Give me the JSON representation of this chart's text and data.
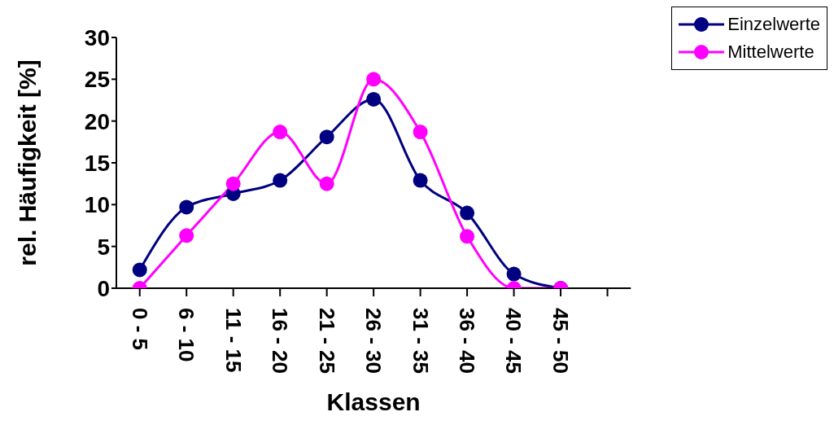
{
  "chart_data": {
    "type": "line",
    "xlabel": "Klassen",
    "ylabel": "rel. Häufigkeit [%]",
    "categories": [
      "0 - 5",
      "6 - 10",
      "11 - 15",
      "16 - 20",
      "21 - 25",
      "26 - 30",
      "31 - 35",
      "36 - 40",
      "40 - 45",
      "45 - 50",
      null
    ],
    "series": [
      {
        "name": "Einzelwerte",
        "color": "#000080",
        "values": [
          2.2,
          9.7,
          11.3,
          12.9,
          18.1,
          22.6,
          12.9,
          9.0,
          1.7,
          0,
          null
        ]
      },
      {
        "name": "Mittelwerte",
        "color": "#ff00ff",
        "values": [
          0,
          6.3,
          12.5,
          18.7,
          12.5,
          25.0,
          18.7,
          6.2,
          0,
          0,
          null
        ]
      }
    ],
    "ylim": [
      0,
      30
    ],
    "yticks": [
      0,
      5,
      10,
      15,
      20,
      25,
      30
    ],
    "grid": false,
    "legend": "top right",
    "marker": "circle",
    "line_style": "solid"
  }
}
